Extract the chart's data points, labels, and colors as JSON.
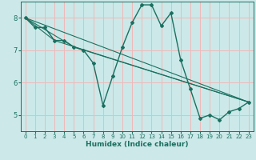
{
  "xlabel": "Humidex (Indice chaleur)",
  "background_color": "#cce8e8",
  "grid_color": "#f0b8b8",
  "line_color": "#1a7060",
  "xlim": [
    -0.5,
    23.5
  ],
  "ylim": [
    4.5,
    8.5
  ],
  "yticks": [
    5,
    6,
    7,
    8
  ],
  "xticks": [
    0,
    1,
    2,
    3,
    4,
    5,
    6,
    7,
    8,
    9,
    10,
    11,
    12,
    13,
    14,
    15,
    16,
    17,
    18,
    19,
    20,
    21,
    22,
    23
  ],
  "main_line": [
    [
      0,
      8.0
    ],
    [
      1,
      7.7
    ],
    [
      2,
      7.7
    ],
    [
      3,
      7.3
    ],
    [
      4,
      7.3
    ],
    [
      5,
      7.1
    ],
    [
      6,
      7.0
    ],
    [
      7,
      6.6
    ],
    [
      8,
      5.3
    ],
    [
      9,
      6.2
    ],
    [
      10,
      7.1
    ],
    [
      11,
      7.85
    ],
    [
      12,
      8.4
    ],
    [
      13,
      8.4
    ],
    [
      14,
      7.75
    ],
    [
      15,
      8.15
    ],
    [
      16,
      6.7
    ],
    [
      17,
      5.8
    ],
    [
      18,
      4.9
    ],
    [
      19,
      5.0
    ],
    [
      20,
      4.85
    ],
    [
      21,
      5.1
    ],
    [
      22,
      5.2
    ],
    [
      23,
      5.4
    ]
  ],
  "extra_lines": [
    [
      [
        0,
        8.0
      ],
      [
        23,
        5.4
      ]
    ],
    [
      [
        0,
        8.0
      ],
      [
        3,
        7.3
      ],
      [
        23,
        5.4
      ]
    ],
    [
      [
        0,
        8.0
      ],
      [
        5,
        7.1
      ],
      [
        23,
        5.4
      ]
    ]
  ]
}
